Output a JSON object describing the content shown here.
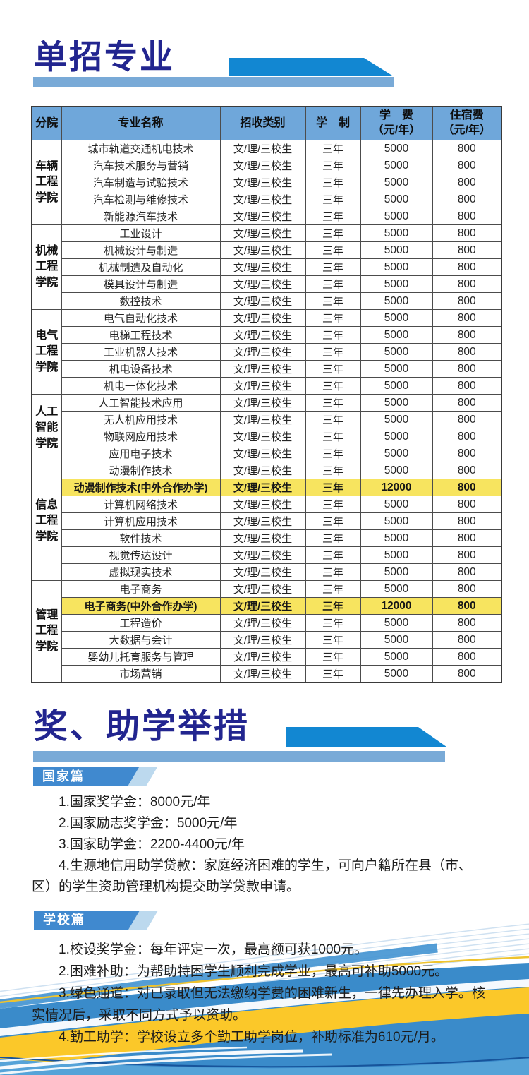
{
  "colors": {
    "title_navy": "#22258f",
    "accent_blue": "#1287d2",
    "bar_blue": "#79aad7",
    "header_bg": "#6fa7da",
    "highlight_yellow": "#f7e45f",
    "badge_blue": "#4089cf",
    "badge_echo": "#bcd9ee",
    "wave_blue": "#3a8bca",
    "wave_yellow": "#fbc829"
  },
  "section1": {
    "title": "单招专业",
    "table": {
      "headers": [
        "分院",
        "专业名称",
        "招收类别",
        "学　制",
        "学　费\n（元/年）",
        "住宿费\n（元/年）"
      ],
      "groups": [
        {
          "college": "车辆\n工程\n学院",
          "rows": [
            {
              "major": "城市轨道交通机电技术",
              "category": "文/理/三校生",
              "duration": "三年",
              "tuition": "5000",
              "accommodation": "800",
              "highlight": false
            },
            {
              "major": "汽车技术服务与营销",
              "category": "文/理/三校生",
              "duration": "三年",
              "tuition": "5000",
              "accommodation": "800",
              "highlight": false
            },
            {
              "major": "汽车制造与试验技术",
              "category": "文/理/三校生",
              "duration": "三年",
              "tuition": "5000",
              "accommodation": "800",
              "highlight": false
            },
            {
              "major": "汽车检测与维修技术",
              "category": "文/理/三校生",
              "duration": "三年",
              "tuition": "5000",
              "accommodation": "800",
              "highlight": false
            },
            {
              "major": "新能源汽车技术",
              "category": "文/理/三校生",
              "duration": "三年",
              "tuition": "5000",
              "accommodation": "800",
              "highlight": false
            }
          ]
        },
        {
          "college": "机械\n工程\n学院",
          "rows": [
            {
              "major": "工业设计",
              "category": "文/理/三校生",
              "duration": "三年",
              "tuition": "5000",
              "accommodation": "800",
              "highlight": false
            },
            {
              "major": "机械设计与制造",
              "category": "文/理/三校生",
              "duration": "三年",
              "tuition": "5000",
              "accommodation": "800",
              "highlight": false
            },
            {
              "major": "机械制造及自动化",
              "category": "文/理/三校生",
              "duration": "三年",
              "tuition": "5000",
              "accommodation": "800",
              "highlight": false
            },
            {
              "major": "模具设计与制造",
              "category": "文/理/三校生",
              "duration": "三年",
              "tuition": "5000",
              "accommodation": "800",
              "highlight": false
            },
            {
              "major": "数控技术",
              "category": "文/理/三校生",
              "duration": "三年",
              "tuition": "5000",
              "accommodation": "800",
              "highlight": false
            }
          ]
        },
        {
          "college": "电气\n工程\n学院",
          "rows": [
            {
              "major": "电气自动化技术",
              "category": "文/理/三校生",
              "duration": "三年",
              "tuition": "5000",
              "accommodation": "800",
              "highlight": false
            },
            {
              "major": "电梯工程技术",
              "category": "文/理/三校生",
              "duration": "三年",
              "tuition": "5000",
              "accommodation": "800",
              "highlight": false
            },
            {
              "major": "工业机器人技术",
              "category": "文/理/三校生",
              "duration": "三年",
              "tuition": "5000",
              "accommodation": "800",
              "highlight": false
            },
            {
              "major": "机电设备技术",
              "category": "文/理/三校生",
              "duration": "三年",
              "tuition": "5000",
              "accommodation": "800",
              "highlight": false
            },
            {
              "major": "机电一体化技术",
              "category": "文/理/三校生",
              "duration": "三年",
              "tuition": "5000",
              "accommodation": "800",
              "highlight": false
            }
          ]
        },
        {
          "college": "人工\n智能\n学院",
          "rows": [
            {
              "major": "人工智能技术应用",
              "category": "文/理/三校生",
              "duration": "三年",
              "tuition": "5000",
              "accommodation": "800",
              "highlight": false
            },
            {
              "major": "无人机应用技术",
              "category": "文/理/三校生",
              "duration": "三年",
              "tuition": "5000",
              "accommodation": "800",
              "highlight": false
            },
            {
              "major": "物联网应用技术",
              "category": "文/理/三校生",
              "duration": "三年",
              "tuition": "5000",
              "accommodation": "800",
              "highlight": false
            },
            {
              "major": "应用电子技术",
              "category": "文/理/三校生",
              "duration": "三年",
              "tuition": "5000",
              "accommodation": "800",
              "highlight": false
            }
          ]
        },
        {
          "college": "信息\n工程\n学院",
          "rows": [
            {
              "major": "动漫制作技术",
              "category": "文/理/三校生",
              "duration": "三年",
              "tuition": "5000",
              "accommodation": "800",
              "highlight": false
            },
            {
              "major": "动漫制作技术(中外合作办学)",
              "category": "文/理/三校生",
              "duration": "三年",
              "tuition": "12000",
              "accommodation": "800",
              "highlight": true
            },
            {
              "major": "计算机网络技术",
              "category": "文/理/三校生",
              "duration": "三年",
              "tuition": "5000",
              "accommodation": "800",
              "highlight": false
            },
            {
              "major": "计算机应用技术",
              "category": "文/理/三校生",
              "duration": "三年",
              "tuition": "5000",
              "accommodation": "800",
              "highlight": false
            },
            {
              "major": "软件技术",
              "category": "文/理/三校生",
              "duration": "三年",
              "tuition": "5000",
              "accommodation": "800",
              "highlight": false
            },
            {
              "major": "视觉传达设计",
              "category": "文/理/三校生",
              "duration": "三年",
              "tuition": "5000",
              "accommodation": "800",
              "highlight": false
            },
            {
              "major": "虚拟现实技术",
              "category": "文/理/三校生",
              "duration": "三年",
              "tuition": "5000",
              "accommodation": "800",
              "highlight": false
            }
          ]
        },
        {
          "college": "管理\n工程\n学院",
          "rows": [
            {
              "major": "电子商务",
              "category": "文/理/三校生",
              "duration": "三年",
              "tuition": "5000",
              "accommodation": "800",
              "highlight": false
            },
            {
              "major": "电子商务(中外合作办学)",
              "category": "文/理/三校生",
              "duration": "三年",
              "tuition": "12000",
              "accommodation": "800",
              "highlight": true
            },
            {
              "major": "工程造价",
              "category": "文/理/三校生",
              "duration": "三年",
              "tuition": "5000",
              "accommodation": "800",
              "highlight": false
            },
            {
              "major": "大数据与会计",
              "category": "文/理/三校生",
              "duration": "三年",
              "tuition": "5000",
              "accommodation": "800",
              "highlight": false
            },
            {
              "major": "婴幼儿托育服务与管理",
              "category": "文/理/三校生",
              "duration": "三年",
              "tuition": "5000",
              "accommodation": "800",
              "highlight": false
            },
            {
              "major": "市场营销",
              "category": "文/理/三校生",
              "duration": "三年",
              "tuition": "5000",
              "accommodation": "800",
              "highlight": false
            }
          ]
        }
      ]
    }
  },
  "section2": {
    "title": "奖、助学举措",
    "subsections": [
      {
        "badge": "国家篇",
        "items": [
          "1.国家奖学金：8000元/年",
          "2.国家励志奖学金：5000元/年",
          "3.国家助学金：2200-4400元/年",
          "4.生源地信用助学贷款：家庭经济困难的学生，可向户籍所在县（市、区）的学生资助管理机构提交助学贷款申请。"
        ]
      },
      {
        "badge": "学校篇",
        "items": [
          "1.校设奖学金：每年评定一次，最高额可获1000元。",
          "2.困难补助：为帮助特困学生顺利完成学业，最高可补助5000元。",
          "3.绿色通道：对已录取但无法缴纳学费的困难新生，一律先办理入学。核实情况后，采取不同方式予以资助。",
          "4.勤工助学：学校设立多个勤工助学岗位，补助标准为610元/月。"
        ]
      }
    ]
  }
}
